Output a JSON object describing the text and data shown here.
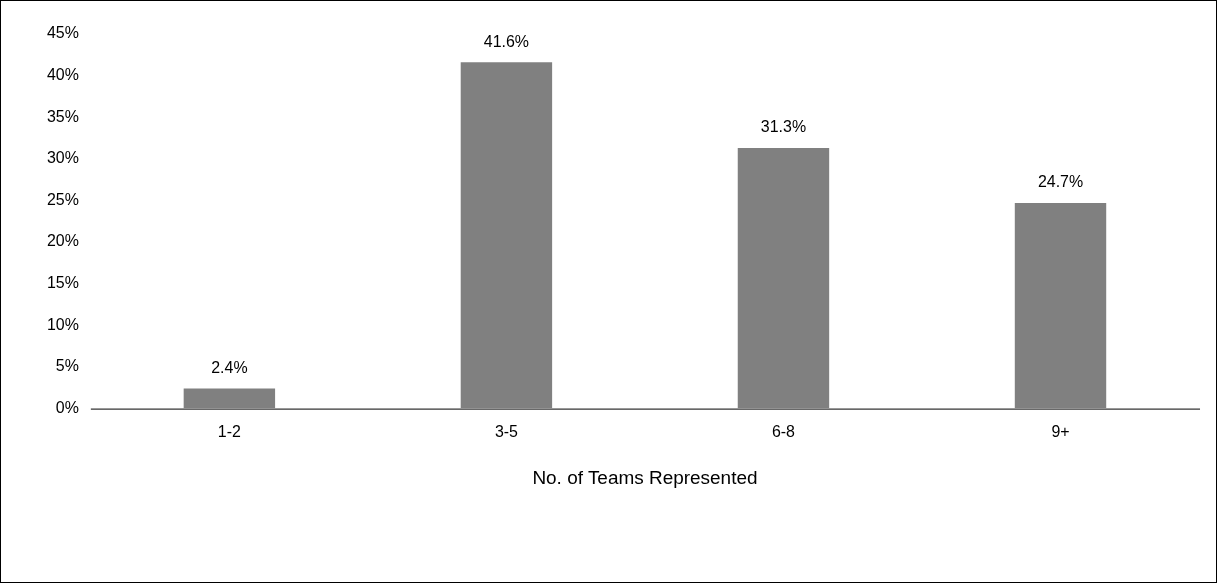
{
  "chart_data": {
    "type": "bar",
    "xlabel": "No. of Teams Represented",
    "categories": [
      "1-2",
      "3-5",
      "6-8",
      "9+"
    ],
    "values": [
      2.4,
      41.6,
      31.3,
      24.7
    ],
    "value_labels": [
      "2.4%",
      "41.6%",
      "31.3%",
      "24.7%"
    ],
    "color": "#808080",
    "ylim": [
      0,
      45
    ],
    "yticks": [
      {
        "value": 0,
        "label": "0%"
      },
      {
        "value": 5,
        "label": "5%"
      },
      {
        "value": 10,
        "label": "10%"
      },
      {
        "value": 15,
        "label": "15%"
      },
      {
        "value": 20,
        "label": "20%"
      },
      {
        "value": 25,
        "label": "25%"
      },
      {
        "value": 30,
        "label": "30%"
      },
      {
        "value": 35,
        "label": "35%"
      },
      {
        "value": 40,
        "label": "40%"
      },
      {
        "value": 45,
        "label": "45%"
      }
    ]
  }
}
